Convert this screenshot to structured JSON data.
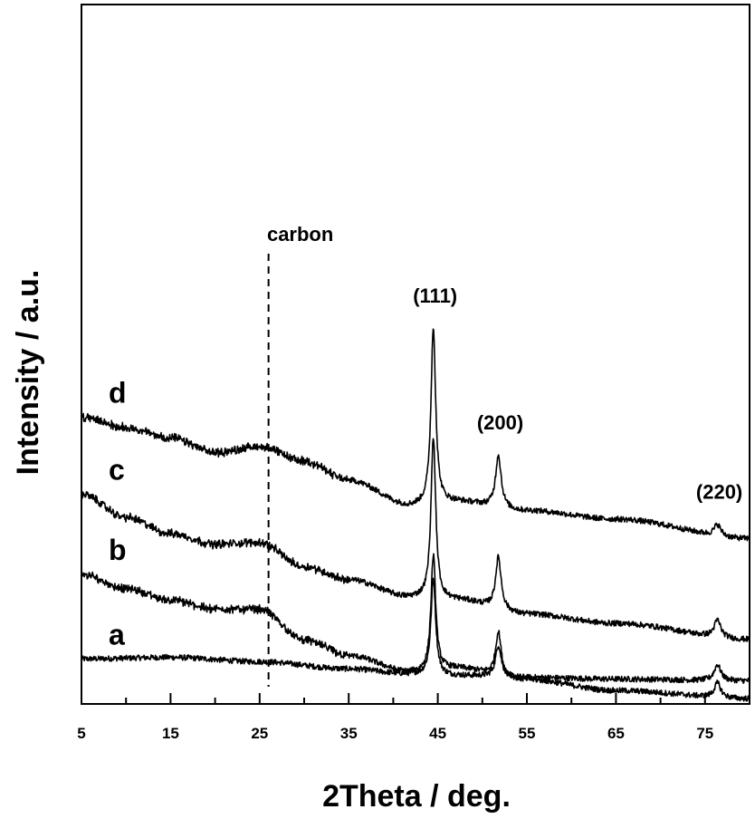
{
  "chart_data": {
    "type": "line",
    "title": "",
    "xlabel": "2Theta / deg.",
    "ylabel": "Intensity / a.u.",
    "xlim": [
      5,
      80
    ],
    "x_ticks_major": [
      5,
      15,
      25,
      35,
      45,
      55,
      65,
      75
    ],
    "x_ticks_minor": [
      10,
      20,
      30,
      40,
      50,
      60,
      70
    ],
    "y_ticks": [],
    "y_units": "arbitrary, stacked offsets",
    "grid": false,
    "legend": "none",
    "peaks": [
      {
        "label": "(111)",
        "x": 44.5
      },
      {
        "label": "(200)",
        "x": 51.8
      },
      {
        "label": "(220)",
        "x": 76.4
      }
    ],
    "reference_line": {
      "label": "carbon",
      "x": 26.0,
      "style": "dashed"
    },
    "series": [
      {
        "name": "a",
        "points": [
          [
            5,
            0.38
          ],
          [
            15,
            0.44
          ],
          [
            25,
            0.27
          ],
          [
            35,
            -0.01
          ],
          [
            42,
            -0.22
          ],
          [
            44.5,
            3.53
          ],
          [
            47,
            -0.28
          ],
          [
            51.8,
            0.92
          ],
          [
            55,
            -0.35
          ],
          [
            65,
            -0.41
          ],
          [
            76.4,
            0.16
          ],
          [
            80,
            -0.48
          ]
        ]
      },
      {
        "name": "b",
        "points": [
          [
            5,
            3.68
          ],
          [
            10,
            3.13
          ],
          [
            15,
            2.68
          ],
          [
            20,
            2.33
          ],
          [
            25,
            2.33
          ],
          [
            30,
            1.12
          ],
          [
            35,
            0.51
          ],
          [
            42,
            -0.14
          ],
          [
            44.5,
            4.45
          ],
          [
            47,
            0.01
          ],
          [
            51.8,
            1.45
          ],
          [
            55,
            -0.44
          ],
          [
            65,
            -0.86
          ],
          [
            76.4,
            -0.56
          ],
          [
            80,
            -1.18
          ]
        ]
      },
      {
        "name": "c",
        "points": [
          [
            5,
            6.83
          ],
          [
            10,
            5.92
          ],
          [
            15,
            5.28
          ],
          [
            20,
            4.87
          ],
          [
            25,
            4.94
          ],
          [
            30,
            3.99
          ],
          [
            35,
            3.48
          ],
          [
            42,
            2.79
          ],
          [
            44.5,
            9.05
          ],
          [
            47,
            2.69
          ],
          [
            51.8,
            4.36
          ],
          [
            55,
            2.13
          ],
          [
            65,
            1.77
          ],
          [
            76.4,
            1.91
          ],
          [
            80,
            1.14
          ]
        ]
      },
      {
        "name": "d",
        "points": [
          [
            5,
            9.84
          ],
          [
            10,
            9.43
          ],
          [
            15,
            9.03
          ],
          [
            20,
            8.46
          ],
          [
            25,
            8.69
          ],
          [
            30,
            8.12
          ],
          [
            35,
            7.37
          ],
          [
            42,
            6.38
          ],
          [
            44.5,
            13.34
          ],
          [
            47,
            6.53
          ],
          [
            51.8,
            8.36
          ],
          [
            55,
            6.18
          ],
          [
            65,
            5.85
          ],
          [
            76.4,
            5.65
          ],
          [
            80,
            5.09
          ]
        ]
      }
    ]
  }
}
